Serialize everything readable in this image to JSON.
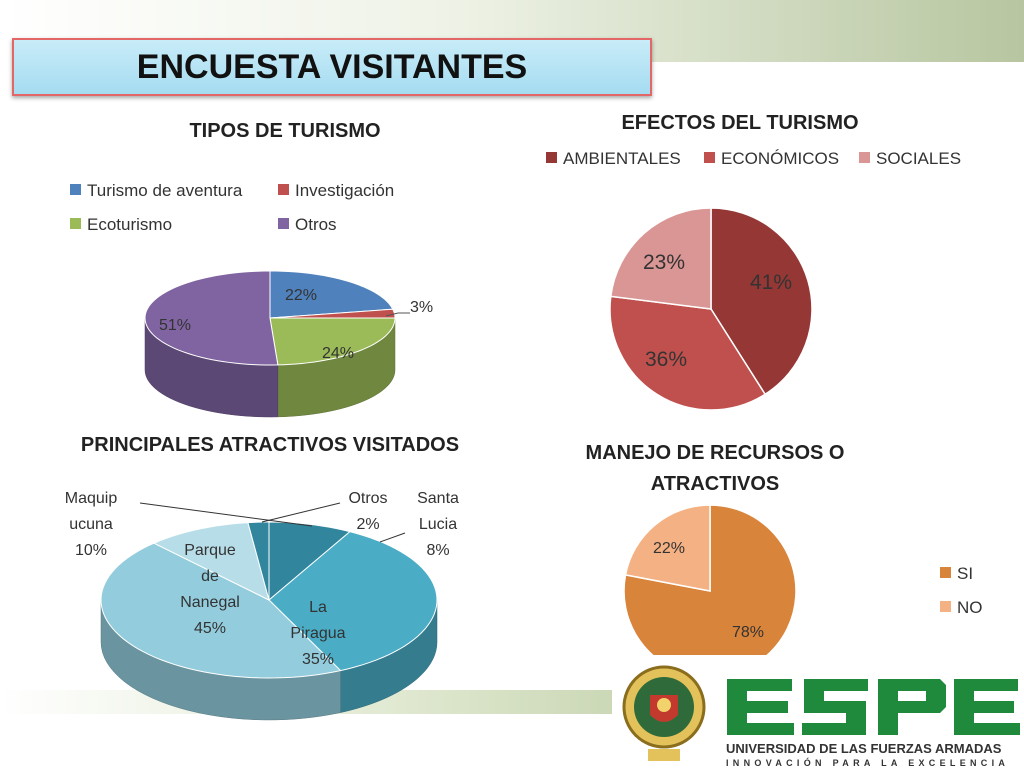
{
  "slide_title": "ENCUESTA VISITANTES",
  "colors": {
    "blue": "#4f81bd",
    "red": "#c0504d",
    "green": "#9bbb59",
    "purple": "#8064a2",
    "teal1": "#31859c",
    "teal2": "#4bacc6",
    "teal3": "#93cddd",
    "teal4": "#b7dee8",
    "dark_red": "#953735",
    "mid_red": "#c0504d",
    "pink": "#d99694",
    "orange": "#d9843b",
    "peach": "#f4b183"
  },
  "chart_data": [
    {
      "type": "pie",
      "title": "TIPOS DE TURISMO",
      "categories": [
        "Turismo de aventura",
        "Investigación",
        "Ecoturismo",
        "Otros"
      ],
      "values": [
        22,
        3,
        24,
        51
      ],
      "labels": [
        "22%",
        "3%",
        "24%",
        "51%"
      ],
      "legend": "top"
    },
    {
      "type": "pie",
      "title": "EFECTOS DEL TURISMO",
      "categories": [
        "AMBIENTALES",
        "ECONÓMICOS",
        "SOCIALES"
      ],
      "values": [
        41,
        36,
        23
      ],
      "labels": [
        "41%",
        "36%",
        "23%"
      ],
      "legend": "top"
    },
    {
      "type": "pie",
      "title": "PRINCIPALES ATRACTIVOS VISITADOS",
      "categories": [
        "Santa Lucia",
        "La Piragua",
        "Parque de Nanegal",
        "Maquipucuna",
        "Otros"
      ],
      "values": [
        8,
        35,
        45,
        10,
        2
      ],
      "labels": [
        [
          "Santa",
          "Lucia",
          "8%"
        ],
        [
          "La",
          "Piragua",
          "35%"
        ],
        [
          "Parque",
          "de",
          "Nanegal",
          "45%"
        ],
        [
          "Maquip",
          "ucuna",
          "10%"
        ],
        [
          "Otros",
          "2%"
        ]
      ],
      "legend": "none"
    },
    {
      "type": "pie",
      "title": "MANEJO DE RECURSOS O ATRACTIVOS",
      "categories": [
        "SI",
        "NO"
      ],
      "values": [
        78,
        22
      ],
      "labels": [
        "78%",
        "22%"
      ],
      "legend": "right"
    }
  ],
  "logo": {
    "name": "ESPE",
    "line1": "UNIVERSIDAD DE LAS FUERZAS ARMADAS",
    "line2": "INNOVACIÓN PARA LA EXCELENCIA"
  }
}
